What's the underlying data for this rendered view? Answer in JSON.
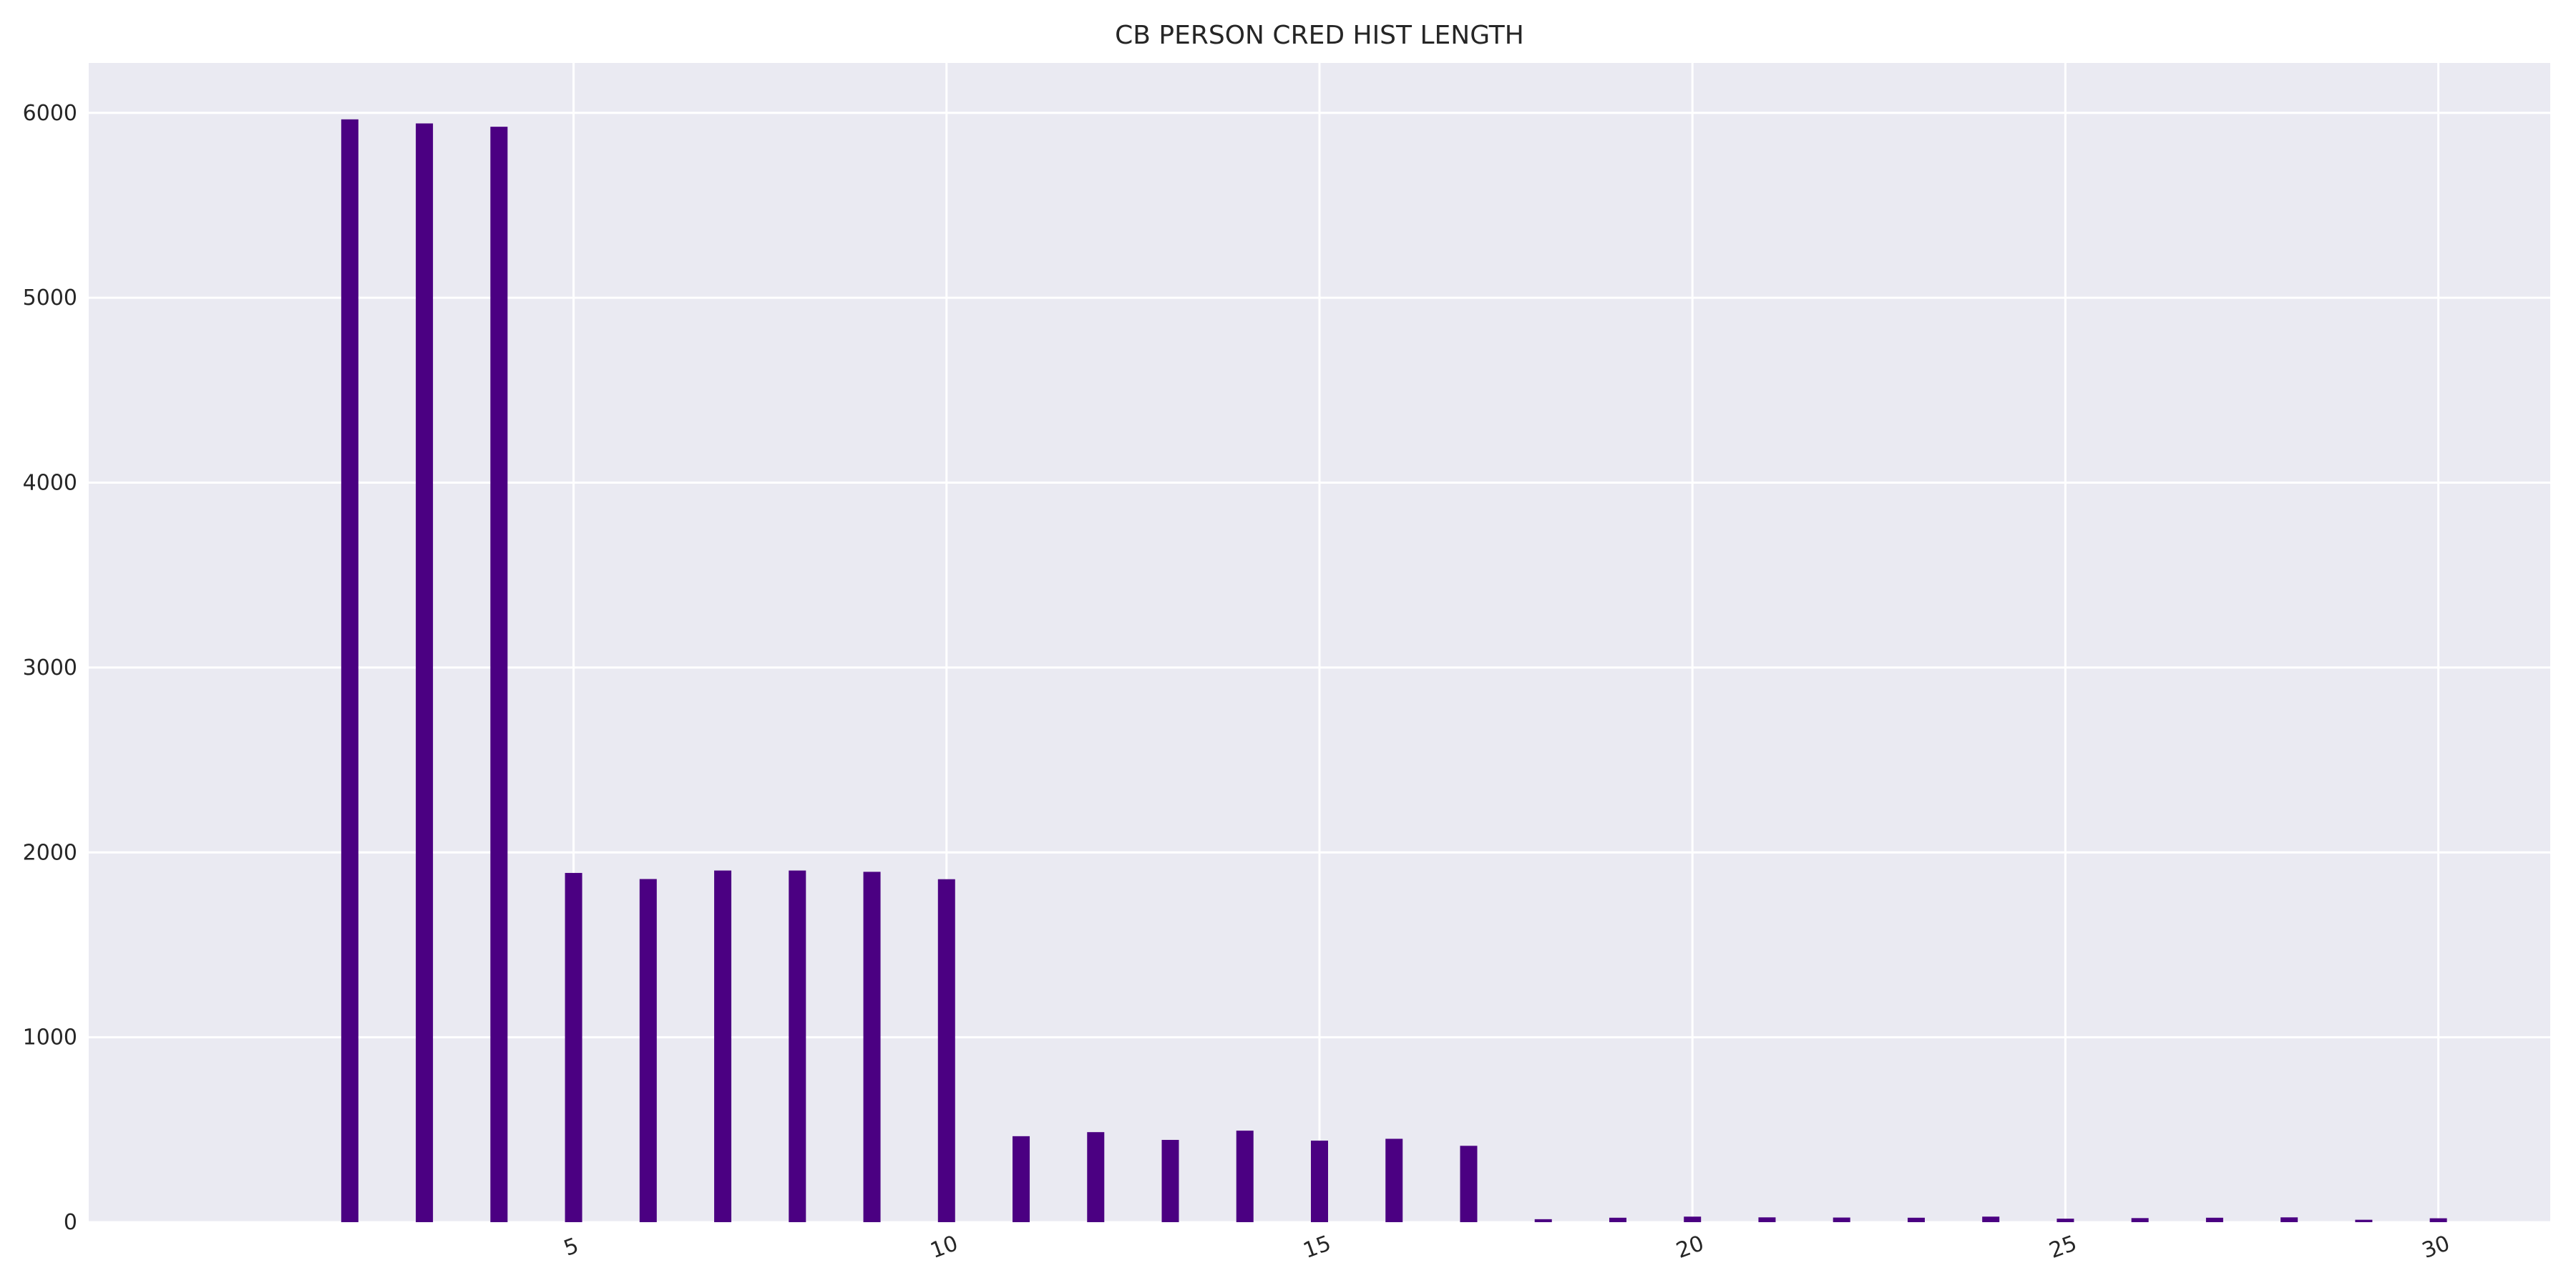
{
  "colors": {
    "background": "#ffffff",
    "plot_background": "#eaeaf2",
    "bar": "#4b0082",
    "grid": "#ffffff",
    "text": "#262626"
  },
  "chart_data": {
    "type": "bar",
    "title": "CB PERSON CRED HIST LENGTH",
    "xlabel": "",
    "ylabel": "",
    "x": [
      2,
      3,
      4,
      5,
      6,
      7,
      8,
      9,
      10,
      11,
      12,
      13,
      14,
      15,
      16,
      17,
      18,
      19,
      20,
      21,
      22,
      23,
      24,
      25,
      26,
      27,
      28,
      29,
      30
    ],
    "values": [
      5965,
      5943,
      5925,
      1889,
      1856,
      1902,
      1902,
      1895,
      1855,
      465,
      487,
      445,
      495,
      441,
      451,
      413,
      16,
      24,
      30,
      26,
      25,
      24,
      30,
      19,
      22,
      24,
      26,
      13,
      21
    ],
    "xlim": [
      -1.5,
      31.5
    ],
    "ylim": [
      0,
      6270
    ],
    "xticks": [
      5,
      10,
      15,
      20,
      25,
      30
    ],
    "yticks": [
      0,
      1000,
      2000,
      3000,
      4000,
      5000,
      6000
    ],
    "x_tick_rotation_deg": -20,
    "grid": true,
    "legend": "none"
  }
}
